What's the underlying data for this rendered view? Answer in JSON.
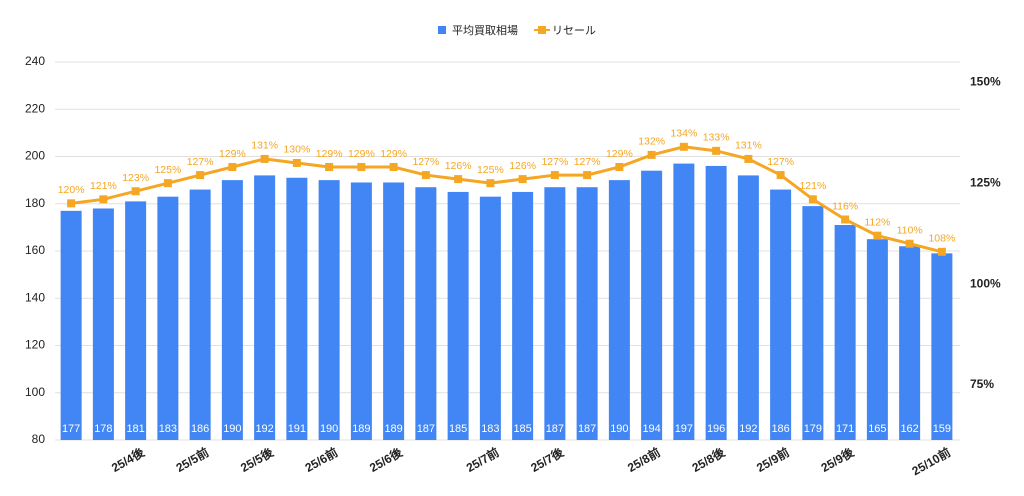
{
  "chart_data": {
    "type": "bar_line",
    "categories": [
      null,
      null,
      "25/4後",
      null,
      "25/5前",
      null,
      "25/5後",
      null,
      "25/6前",
      null,
      "25/6後",
      null,
      null,
      "25/7前",
      null,
      "25/7後",
      null,
      null,
      "25/8前",
      null,
      "25/8後",
      null,
      "25/9前",
      null,
      "25/9後",
      null,
      null,
      "25/10前"
    ],
    "series": [
      {
        "name": "平均買取相場",
        "type": "bar",
        "color": "#4285f4",
        "values": [
          177,
          178,
          181,
          183,
          186,
          190,
          192,
          191,
          190,
          189,
          189,
          187,
          185,
          183,
          185,
          187,
          187,
          190,
          194,
          197,
          196,
          192,
          186,
          179,
          171,
          165,
          162,
          159
        ]
      },
      {
        "name": "リセール",
        "type": "line",
        "axis": "y2",
        "color": "#f5a623",
        "values": [
          120,
          121,
          123,
          125,
          127,
          129,
          131,
          130,
          129,
          129,
          129,
          127,
          126,
          125,
          126,
          127,
          127,
          129,
          132,
          134,
          133,
          131,
          127,
          121,
          116,
          112,
          110,
          108
        ],
        "value_labels": [
          "120%",
          "121%",
          "123%",
          "125%",
          "127%",
          "129%",
          "131%",
          "130%",
          "129%",
          "129%",
          "129%",
          "127%",
          "126%",
          "125%",
          "126%",
          "127%",
          "127%",
          "129%",
          "132%",
          "134%",
          "133%",
          "131%",
          "127%",
          "121%",
          "116%",
          "112%",
          "110%",
          "108%"
        ]
      }
    ],
    "ylim": [
      80,
      240
    ],
    "yticks": [
      80,
      100,
      120,
      140,
      160,
      180,
      200,
      220,
      240
    ],
    "y2lim": [
      61.4,
      155
    ],
    "y2ticks": [
      {
        "value": 75,
        "label": "75%"
      },
      {
        "value": 100,
        "label": "100%"
      },
      {
        "value": 125,
        "label": "125%"
      },
      {
        "value": 150,
        "label": "150%"
      }
    ],
    "grid": true,
    "legend": "top"
  }
}
